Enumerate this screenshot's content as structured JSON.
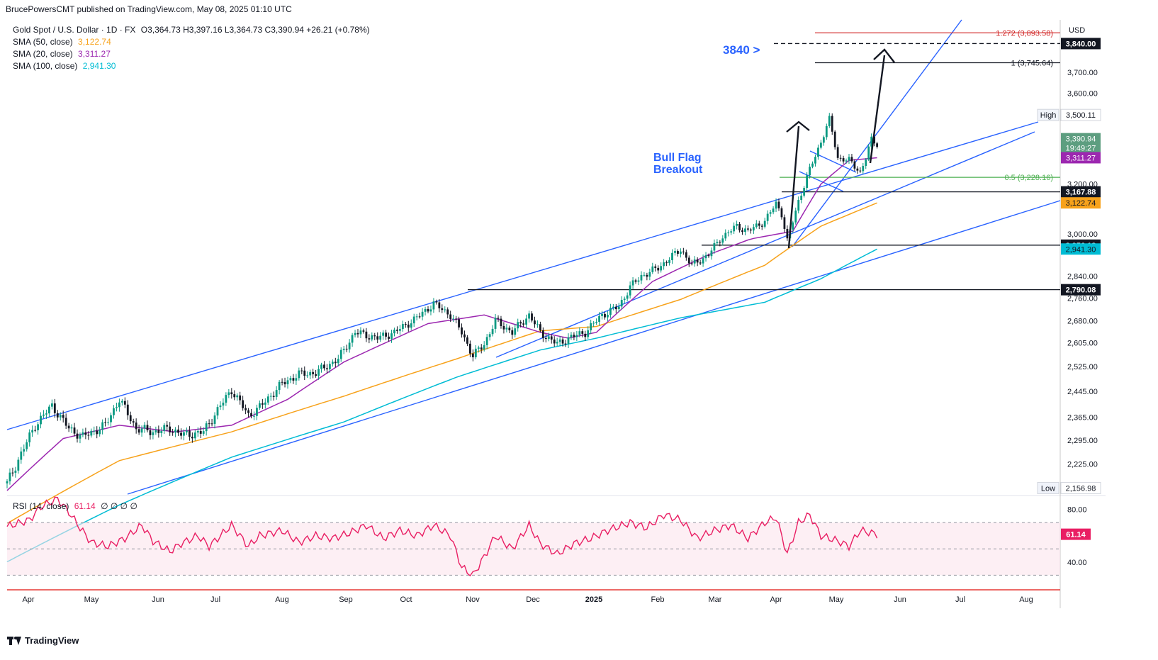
{
  "header": {
    "published": "BrucePowersCMT published on TradingView.com, May 08, 2025 01:10 UTC"
  },
  "legend": {
    "symbol": "Gold Spot / U.S. Dollar · 1D · FX",
    "ohlc": "O3,364.73  H3,397.16  L3,364.73  C3,390.94  +26.21 (+0.78%)",
    "sma50_label": "SMA (50, close)",
    "sma50_value": "3,122.74",
    "sma20_label": "SMA (20, close)",
    "sma20_value": "3,311.27",
    "sma100_label": "SMA (100, close)",
    "sma100_value": "2,941.30",
    "rsi_label": "RSI (14, close)",
    "rsi_value": "61.14",
    "rsi_extras": "∅ ∅ ∅ ∅"
  },
  "annotations": {
    "target": "3840 >",
    "pattern_line1": "Bull Flag",
    "pattern_line2": "Breakout",
    "fib_1272": "1.272 (3,893.58)",
    "fib_1": "1 (3,745.64)",
    "fib_05": "0.5 (3,228.16)"
  },
  "footer": {
    "brand": "TradingView"
  },
  "colors": {
    "up": "#089981",
    "down": "#131722",
    "sma50": "#f7a21b",
    "sma20": "#9c27b0",
    "sma100": "#00bcd4",
    "trend": "#2962ff",
    "rsi": "#e91e63",
    "fib_red": "#d32f2f",
    "fib_green": "#4caf50"
  },
  "chart_data": {
    "type": "candlestick",
    "title": "Gold Spot / U.S. Dollar · 1D · FX",
    "currency": "USD",
    "x_tick_labels": [
      "Apr",
      "May",
      "Jun",
      "Jul",
      "Aug",
      "Sep",
      "Oct",
      "Nov",
      "Dec",
      "2025",
      "Feb",
      "Mar",
      "Apr",
      "May",
      "Jun",
      "Jul",
      "Aug"
    ],
    "y_tick_labels": [
      "2,156.98",
      "2,225.00",
      "2,295.00",
      "2,365.00",
      "2,445.00",
      "2,525.00",
      "2,605.00",
      "2,680.00",
      "2,760.00",
      "2,840.00",
      "3,000.00",
      "3,200.00",
      "3,600.00",
      "3,700.00"
    ],
    "y_range": [
      2140,
      3960
    ],
    "scale": "log",
    "price_markers": [
      {
        "label": "High",
        "value": "3,500.11",
        "price": 3500.11,
        "style": "light"
      },
      {
        "label": "",
        "value": "3,840.00",
        "price": 3840,
        "style": "dark"
      },
      {
        "label": "",
        "value": "3,390.94",
        "price": 3390.94,
        "style": "green",
        "sub": "19:49:27"
      },
      {
        "label": "",
        "value": "3,311.27",
        "price": 3311.27,
        "style": "purple"
      },
      {
        "label": "",
        "value": "3,167.88",
        "price": 3167.88,
        "style": "dark"
      },
      {
        "label": "",
        "value": "3,122.74",
        "price": 3122.74,
        "style": "orange"
      },
      {
        "label": "",
        "value": "2,956.13",
        "price": 2956.13,
        "style": "dark"
      },
      {
        "label": "",
        "value": "2,941.30",
        "price": 2941.3,
        "style": "teal"
      },
      {
        "label": "",
        "value": "2,790.08",
        "price": 2790.08,
        "style": "dark"
      },
      {
        "label": "Low",
        "value": "2,156.98",
        "price": 2156.98,
        "style": "light"
      }
    ],
    "horizontal_levels": [
      3893.58,
      3840,
      3745.64,
      3228.16,
      3167.88,
      2956.13,
      2790.08
    ],
    "price_path": [
      [
        0,
        2170
      ],
      [
        10,
        2340
      ],
      [
        16,
        2400
      ],
      [
        22,
        2330
      ],
      [
        27,
        2305
      ],
      [
        35,
        2340
      ],
      [
        40,
        2420
      ],
      [
        46,
        2330
      ],
      [
        52,
        2320
      ],
      [
        58,
        2330
      ],
      [
        63,
        2310
      ],
      [
        70,
        2320
      ],
      [
        76,
        2400
      ],
      [
        80,
        2450
      ],
      [
        86,
        2370
      ],
      [
        90,
        2395
      ],
      [
        98,
        2470
      ],
      [
        104,
        2500
      ],
      [
        110,
        2505
      ],
      [
        118,
        2550
      ],
      [
        124,
        2640
      ],
      [
        132,
        2620
      ],
      [
        138,
        2640
      ],
      [
        146,
        2690
      ],
      [
        152,
        2740
      ],
      [
        158,
        2700
      ],
      [
        162,
        2640
      ],
      [
        166,
        2560
      ],
      [
        170,
        2600
      ],
      [
        174,
        2680
      ],
      [
        180,
        2640
      ],
      [
        186,
        2700
      ],
      [
        190,
        2640
      ],
      [
        196,
        2600
      ],
      [
        200,
        2620
      ],
      [
        206,
        2640
      ],
      [
        212,
        2700
      ],
      [
        218,
        2730
      ],
      [
        222,
        2800
      ],
      [
        226,
        2840
      ],
      [
        232,
        2870
      ],
      [
        240,
        2940
      ],
      [
        244,
        2880
      ],
      [
        250,
        2920
      ],
      [
        254,
        2980
      ],
      [
        260,
        3030
      ],
      [
        264,
        3010
      ],
      [
        270,
        3050
      ],
      [
        274,
        3120
      ],
      [
        276,
        3080
      ],
      [
        278,
        2970
      ],
      [
        282,
        3130
      ],
      [
        286,
        3260
      ],
      [
        290,
        3380
      ],
      [
        293,
        3480
      ],
      [
        296,
        3310
      ],
      [
        300,
        3300
      ],
      [
        304,
        3250
      ],
      [
        306,
        3310
      ],
      [
        308,
        3390
      ],
      [
        310,
        3370
      ]
    ],
    "series": [
      {
        "name": "SMA (50, close)",
        "last": 3122.74,
        "path": [
          [
            0,
            2060
          ],
          [
            40,
            2235
          ],
          [
            80,
            2320
          ],
          [
            120,
            2430
          ],
          [
            160,
            2550
          ],
          [
            190,
            2645
          ],
          [
            210,
            2660
          ],
          [
            240,
            2755
          ],
          [
            270,
            2880
          ],
          [
            290,
            3030
          ],
          [
            310,
            3122.74
          ]
        ]
      },
      {
        "name": "SMA (20, close)",
        "last": 3311.27,
        "path": [
          [
            0,
            2150
          ],
          [
            20,
            2300
          ],
          [
            40,
            2340
          ],
          [
            60,
            2320
          ],
          [
            80,
            2340
          ],
          [
            100,
            2420
          ],
          [
            120,
            2540
          ],
          [
            150,
            2670
          ],
          [
            170,
            2700
          ],
          [
            190,
            2640
          ],
          [
            200,
            2620
          ],
          [
            210,
            2640
          ],
          [
            230,
            2820
          ],
          [
            250,
            2920
          ],
          [
            265,
            2980
          ],
          [
            280,
            3010
          ],
          [
            290,
            3200
          ],
          [
            300,
            3300
          ],
          [
            310,
            3311.27
          ]
        ]
      },
      {
        "name": "SMA (100, close)",
        "last": 2941.3,
        "path": [
          [
            0,
            1960
          ],
          [
            40,
            2110
          ],
          [
            80,
            2245
          ],
          [
            120,
            2350
          ],
          [
            160,
            2490
          ],
          [
            190,
            2580
          ],
          [
            210,
            2620
          ],
          [
            240,
            2690
          ],
          [
            270,
            2745
          ],
          [
            290,
            2830
          ],
          [
            310,
            2941.3
          ]
        ]
      }
    ],
    "rsi": {
      "name": "RSI (14, close)",
      "last": 61.14,
      "levels": [
        70,
        50,
        30
      ],
      "y_tick_labels": [
        "80.00",
        "40.00"
      ],
      "path": [
        [
          0,
          67
        ],
        [
          8,
          72
        ],
        [
          12,
          82
        ],
        [
          18,
          88
        ],
        [
          22,
          78
        ],
        [
          26,
          66
        ],
        [
          30,
          55
        ],
        [
          36,
          52
        ],
        [
          42,
          58
        ],
        [
          48,
          68
        ],
        [
          52,
          56
        ],
        [
          58,
          48
        ],
        [
          62,
          54
        ],
        [
          68,
          60
        ],
        [
          72,
          52
        ],
        [
          80,
          68
        ],
        [
          86,
          52
        ],
        [
          90,
          60
        ],
        [
          98,
          64
        ],
        [
          104,
          55
        ],
        [
          110,
          60
        ],
        [
          116,
          58
        ],
        [
          122,
          62
        ],
        [
          128,
          68
        ],
        [
          134,
          58
        ],
        [
          140,
          64
        ],
        [
          146,
          60
        ],
        [
          152,
          68
        ],
        [
          158,
          60
        ],
        [
          162,
          36
        ],
        [
          166,
          30
        ],
        [
          170,
          44
        ],
        [
          174,
          60
        ],
        [
          180,
          50
        ],
        [
          186,
          68
        ],
        [
          190,
          54
        ],
        [
          196,
          46
        ],
        [
          202,
          54
        ],
        [
          208,
          58
        ],
        [
          214,
          64
        ],
        [
          222,
          70
        ],
        [
          228,
          66
        ],
        [
          234,
          76
        ],
        [
          240,
          72
        ],
        [
          246,
          58
        ],
        [
          252,
          64
        ],
        [
          258,
          68
        ],
        [
          264,
          58
        ],
        [
          270,
          70
        ],
        [
          274,
          74
        ],
        [
          278,
          46
        ],
        [
          282,
          70
        ],
        [
          286,
          76
        ],
        [
          290,
          60
        ],
        [
          296,
          56
        ],
        [
          300,
          52
        ],
        [
          304,
          64
        ],
        [
          310,
          61.14
        ]
      ]
    }
  }
}
